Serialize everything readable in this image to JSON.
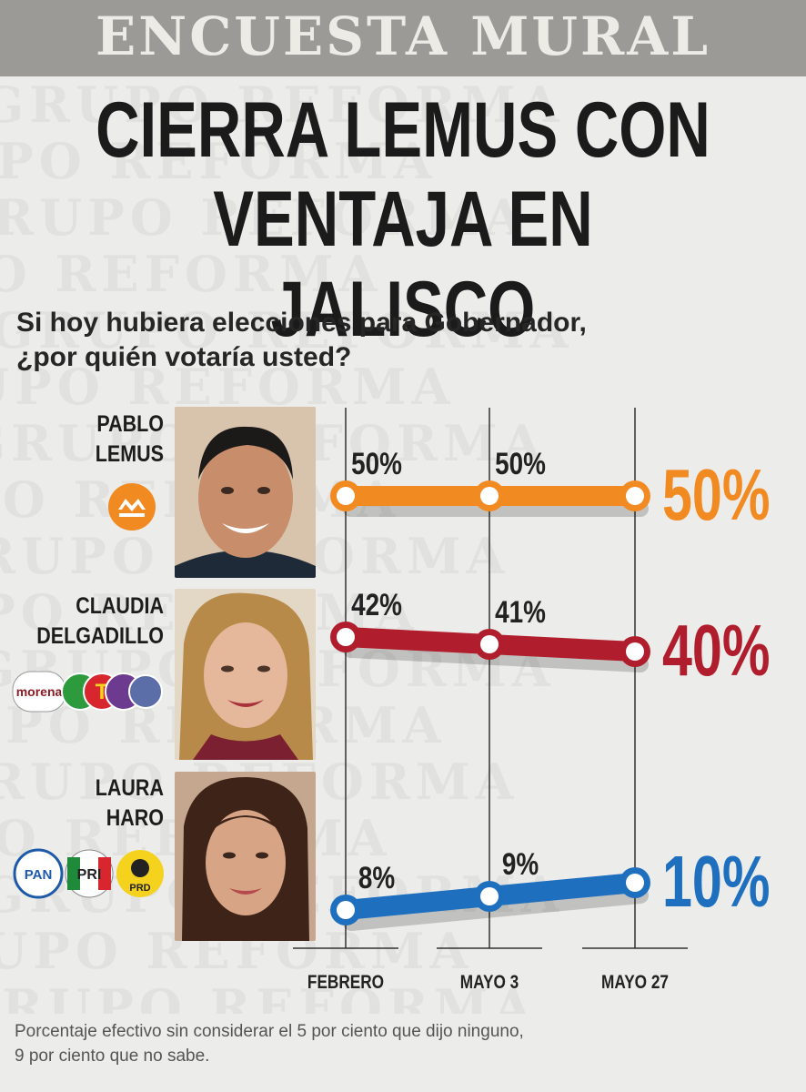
{
  "banner": "ENCUESTA MURAL",
  "headline": [
    "CIERRA LEMUS CON",
    "VENTAJA EN JALISCO"
  ],
  "question": [
    "Si hoy hubiera elecciones para Gobernador,",
    "¿por quién votaría usted?"
  ],
  "watermark": "GRUPO REFORMA",
  "candidates": [
    {
      "name_line1": "PABLO",
      "name_line2": "LEMUS",
      "party_logos": [
        "MC"
      ]
    },
    {
      "name_line1": "CLAUDIA",
      "name_line2": "DELGADILLO",
      "party_logos": [
        "morena",
        "PVEM",
        "PT",
        "Hagamos",
        "Futuro"
      ]
    },
    {
      "name_line1": "LAURA",
      "name_line2": "HARO",
      "party_logos": [
        "PAN",
        "PRI",
        "PRD"
      ]
    }
  ],
  "chart_data": {
    "type": "line",
    "categories": [
      "FEBRERO",
      "MAYO 3",
      "MAYO 27"
    ],
    "series": [
      {
        "name": "PABLO LEMUS",
        "values": [
          50,
          50,
          50
        ],
        "labels": [
          "50%",
          "50%",
          "50%"
        ],
        "color": "#f28a22"
      },
      {
        "name": "CLAUDIA DELGADILLO",
        "values": [
          42,
          41,
          40
        ],
        "labels": [
          "42%",
          "41%",
          "40%"
        ],
        "color": "#b01e2d"
      },
      {
        "name": "LAURA HARO",
        "values": [
          8,
          9,
          10
        ],
        "labels": [
          "8%",
          "9%",
          "10%"
        ],
        "color": "#1f6fbf"
      }
    ]
  },
  "footnote": [
    "Porcentaje efectivo sin considerar el 5 por ciento que dijo ninguno,",
    "9 por ciento que no sabe."
  ]
}
